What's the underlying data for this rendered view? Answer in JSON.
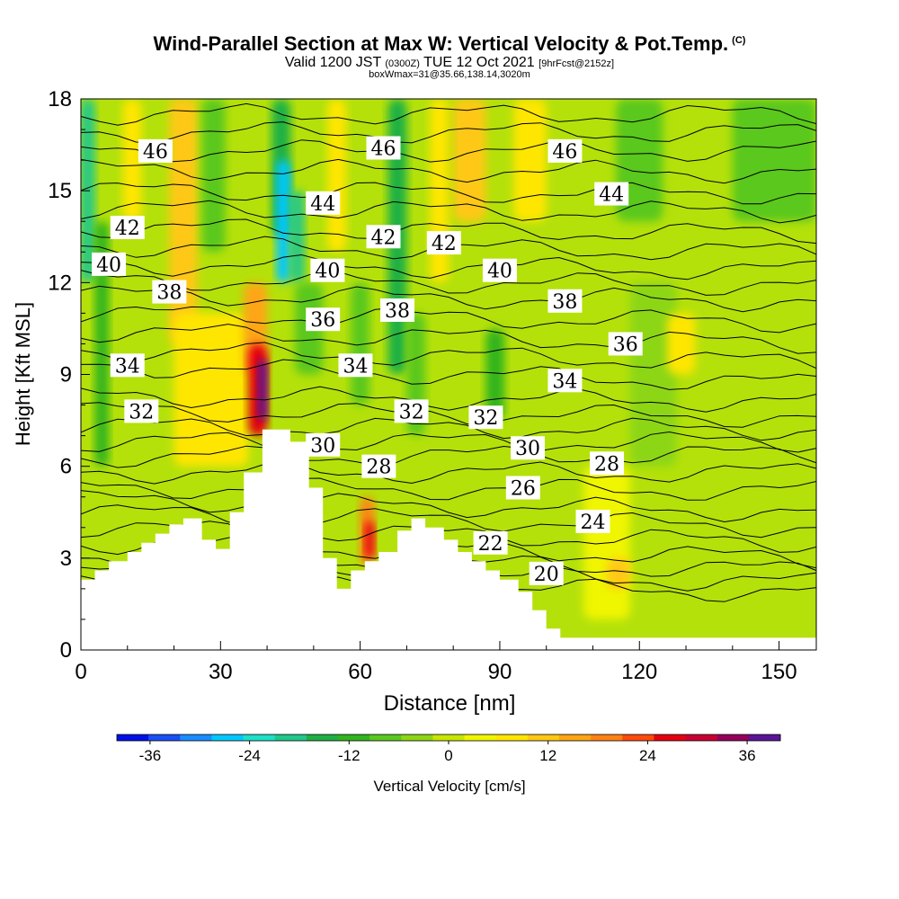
{
  "header": {
    "title": "Wind-Parallel Section at Max W: Vertical Velocity & Pot.Temp.",
    "copyright": "(C)",
    "subtitle_main": "Valid 1200 JST",
    "subtitle_utc": "(0300Z)",
    "subtitle_date": "TUE 12 Oct 2021",
    "subtitle_fcst": "[9hrFcst@2152z]",
    "boxline": "boxWmax=31@35.66,138.14,3020m"
  },
  "colorbar": {
    "label": "Vertical Velocity [cm/s]",
    "ticks": [
      "-36",
      "-24",
      "-12",
      "0",
      "12",
      "24",
      "36"
    ],
    "levels": [
      -40,
      -36,
      -32,
      -28,
      -24,
      -20,
      -16,
      -12,
      -8,
      -4,
      0,
      4,
      8,
      12,
      16,
      20,
      24,
      28,
      32,
      36,
      40
    ],
    "colors": [
      "#0010e8",
      "#1a4ff5",
      "#1a8cff",
      "#00c8ff",
      "#1ee0c8",
      "#20c88a",
      "#1fb044",
      "#32b41e",
      "#5ac81e",
      "#8cd614",
      "#c8e600",
      "#f0f500",
      "#ffe600",
      "#ffc814",
      "#ffa514",
      "#ff8214",
      "#ff4b0a",
      "#e6000f",
      "#c80032",
      "#96005a",
      "#5a1496"
    ]
  },
  "chart_data": {
    "type": "contour-section",
    "xlabel": "Distance [nm]",
    "ylabel": "Height [Kft MSL]",
    "xlim": [
      0,
      158
    ],
    "ylim": [
      0,
      18
    ],
    "xticks": [
      "0",
      "30",
      "60",
      "90",
      "120",
      "150"
    ],
    "yticks": [
      "0",
      "3",
      "6",
      "9",
      "12",
      "15",
      "18"
    ],
    "terrain": [
      [
        0,
        2.3
      ],
      [
        3,
        2.3
      ],
      [
        3,
        2.6
      ],
      [
        6,
        2.6
      ],
      [
        6,
        2.9
      ],
      [
        10,
        2.9
      ],
      [
        10,
        3.2
      ],
      [
        13,
        3.2
      ],
      [
        13,
        3.5
      ],
      [
        16,
        3.5
      ],
      [
        16,
        3.8
      ],
      [
        19,
        3.8
      ],
      [
        19,
        4.1
      ],
      [
        22,
        4.1
      ],
      [
        22,
        4.3
      ],
      [
        26,
        4.3
      ],
      [
        26,
        3.6
      ],
      [
        29,
        3.6
      ],
      [
        29,
        3.3
      ],
      [
        32,
        3.3
      ],
      [
        32,
        4.5
      ],
      [
        35,
        4.5
      ],
      [
        35,
        5.8
      ],
      [
        39,
        5.8
      ],
      [
        39,
        7.2
      ],
      [
        42,
        7.2
      ],
      [
        42,
        7.2
      ],
      [
        45,
        7.2
      ],
      [
        45,
        6.8
      ],
      [
        49,
        6.8
      ],
      [
        49,
        5.3
      ],
      [
        52,
        5.3
      ],
      [
        52,
        3.0
      ],
      [
        55,
        3.0
      ],
      [
        55,
        2.0
      ],
      [
        58,
        2.0
      ],
      [
        58,
        2.6
      ],
      [
        61,
        2.6
      ],
      [
        61,
        2.9
      ],
      [
        64,
        2.9
      ],
      [
        64,
        3.2
      ],
      [
        68,
        3.2
      ],
      [
        68,
        3.9
      ],
      [
        71,
        3.9
      ],
      [
        71,
        4.3
      ],
      [
        74,
        4.3
      ],
      [
        74,
        4.0
      ],
      [
        78,
        4.0
      ],
      [
        78,
        3.6
      ],
      [
        81,
        3.6
      ],
      [
        81,
        3.2
      ],
      [
        84,
        3.2
      ],
      [
        84,
        2.9
      ],
      [
        87,
        2.9
      ],
      [
        87,
        2.6
      ],
      [
        90,
        2.6
      ],
      [
        90,
        2.3
      ],
      [
        94,
        2.3
      ],
      [
        94,
        1.9
      ],
      [
        97,
        1.9
      ],
      [
        97,
        1.3
      ],
      [
        100,
        1.3
      ],
      [
        100,
        0.7
      ],
      [
        103,
        0.7
      ],
      [
        103,
        0.4
      ],
      [
        158,
        0.4
      ]
    ],
    "vv_cells": [
      {
        "x": [
          0,
          3
        ],
        "y": [
          12,
          18
        ],
        "v": -20
      },
      {
        "x": [
          3,
          6
        ],
        "y": [
          6,
          14
        ],
        "v": -10
      },
      {
        "x": [
          9,
          13
        ],
        "y": [
          14,
          18
        ],
        "v": 8
      },
      {
        "x": [
          19,
          25
        ],
        "y": [
          10,
          18
        ],
        "v": 12
      },
      {
        "x": [
          20,
          36
        ],
        "y": [
          6,
          11
        ],
        "v": 8
      },
      {
        "x": [
          26,
          31
        ],
        "y": [
          13,
          18
        ],
        "v": -6
      },
      {
        "x": [
          35,
          40
        ],
        "y": [
          9,
          12
        ],
        "v": 16
      },
      {
        "x": [
          36,
          40
        ],
        "y": [
          7,
          10
        ],
        "v": 28
      },
      {
        "x": [
          38,
          40
        ],
        "y": [
          7.5,
          9.5
        ],
        "v": 40
      },
      {
        "x": [
          41,
          45
        ],
        "y": [
          13.5,
          18
        ],
        "v": -16
      },
      {
        "x": [
          42,
          45
        ],
        "y": [
          12,
          16
        ],
        "v": -28
      },
      {
        "x": [
          45,
          48
        ],
        "y": [
          12,
          15
        ],
        "v": -20
      },
      {
        "x": [
          46,
          52
        ],
        "y": [
          9,
          12
        ],
        "v": -6
      },
      {
        "x": [
          53,
          57
        ],
        "y": [
          13,
          18
        ],
        "v": 10
      },
      {
        "x": [
          58,
          62
        ],
        "y": [
          8,
          12
        ],
        "v": -8
      },
      {
        "x": [
          60,
          63
        ],
        "y": [
          2.8,
          5
        ],
        "v": 20
      },
      {
        "x": [
          61,
          63
        ],
        "y": [
          3,
          4.2
        ],
        "v": 28
      },
      {
        "x": [
          66,
          70
        ],
        "y": [
          9,
          18
        ],
        "v": -16
      },
      {
        "x": [
          70,
          74
        ],
        "y": [
          7,
          11
        ],
        "v": -6
      },
      {
        "x": [
          75,
          79
        ],
        "y": [
          12,
          18
        ],
        "v": 8
      },
      {
        "x": [
          80,
          87
        ],
        "y": [
          14,
          18
        ],
        "v": 12
      },
      {
        "x": [
          87,
          91
        ],
        "y": [
          7.5,
          10.5
        ],
        "v": -10
      },
      {
        "x": [
          93,
          100
        ],
        "y": [
          14,
          18
        ],
        "v": 8
      },
      {
        "x": [
          108,
          118
        ],
        "y": [
          1,
          6
        ],
        "v": 6
      },
      {
        "x": [
          113,
          118
        ],
        "y": [
          2,
          3
        ],
        "v": 14
      },
      {
        "x": [
          115,
          125
        ],
        "y": [
          14,
          18
        ],
        "v": -6
      },
      {
        "x": [
          118,
          128
        ],
        "y": [
          6,
          12
        ],
        "v": -4
      },
      {
        "x": [
          126,
          132
        ],
        "y": [
          9,
          11
        ],
        "v": 8
      },
      {
        "x": [
          140,
          158
        ],
        "y": [
          14,
          18
        ],
        "v": -6
      }
    ],
    "theta_labels": [
      {
        "text": "46",
        "x": 16,
        "y": 16.3
      },
      {
        "text": "46",
        "x": 65,
        "y": 16.4
      },
      {
        "text": "46",
        "x": 104,
        "y": 16.3
      },
      {
        "text": "44",
        "x": 52,
        "y": 14.6
      },
      {
        "text": "44",
        "x": 114,
        "y": 14.9
      },
      {
        "text": "42",
        "x": 10,
        "y": 13.8
      },
      {
        "text": "42",
        "x": 65,
        "y": 13.5
      },
      {
        "text": "42",
        "x": 78,
        "y": 13.3
      },
      {
        "text": "40",
        "x": 6,
        "y": 12.6
      },
      {
        "text": "40",
        "x": 53,
        "y": 12.4
      },
      {
        "text": "40",
        "x": 90,
        "y": 12.4
      },
      {
        "text": "38",
        "x": 19,
        "y": 11.7
      },
      {
        "text": "38",
        "x": 68,
        "y": 11.1
      },
      {
        "text": "38",
        "x": 104,
        "y": 11.4
      },
      {
        "text": "36",
        "x": 52,
        "y": 10.8
      },
      {
        "text": "36",
        "x": 117,
        "y": 10.0
      },
      {
        "text": "34",
        "x": 10,
        "y": 9.3
      },
      {
        "text": "34",
        "x": 59,
        "y": 9.3
      },
      {
        "text": "34",
        "x": 104,
        "y": 8.8
      },
      {
        "text": "32",
        "x": 13,
        "y": 7.8
      },
      {
        "text": "32",
        "x": 71,
        "y": 7.8
      },
      {
        "text": "32",
        "x": 87,
        "y": 7.6
      },
      {
        "text": "30",
        "x": 52,
        "y": 6.7
      },
      {
        "text": "30",
        "x": 96,
        "y": 6.6
      },
      {
        "text": "28",
        "x": 64,
        "y": 6.0
      },
      {
        "text": "28",
        "x": 113,
        "y": 6.1
      },
      {
        "text": "26",
        "x": 95,
        "y": 5.3
      },
      {
        "text": "24",
        "x": 110,
        "y": 4.2
      },
      {
        "text": "22",
        "x": 88,
        "y": 3.5
      },
      {
        "text": "20",
        "x": 100,
        "y": 2.5
      }
    ],
    "theta_isolines": [
      {
        "v": 20,
        "y0": 2.1,
        "y1": 1.9
      },
      {
        "v": 21,
        "y0": 2.6,
        "y1": 2.2
      },
      {
        "v": 22,
        "y0": 3.0,
        "y1": 2.6
      },
      {
        "v": 23,
        "y0": 3.5,
        "y1": 3.0
      },
      {
        "v": 24,
        "y0": 4.0,
        "y1": 3.5
      },
      {
        "v": 25,
        "y0": 4.5,
        "y1": 4.0
      },
      {
        "v": 26,
        "y0": 4.9,
        "y1": 4.5
      },
      {
        "v": 27,
        "y0": 5.3,
        "y1": 5.2
      },
      {
        "v": 28,
        "y0": 5.8,
        "y1": 5.8
      },
      {
        "v": 29,
        "y0": 6.3,
        "y1": 6.4
      },
      {
        "v": 30,
        "y0": 6.8,
        "y1": 6.8
      },
      {
        "v": 31,
        "y0": 7.3,
        "y1": 7.2
      },
      {
        "v": 32,
        "y0": 7.8,
        "y1": 7.6
      },
      {
        "v": 33,
        "y0": 8.3,
        "y1": 8.1
      },
      {
        "v": 34,
        "y0": 9.3,
        "y1": 8.7
      },
      {
        "v": 35,
        "y0": 9.8,
        "y1": 9.4
      },
      {
        "v": 36,
        "y0": 10.4,
        "y1": 10.0
      },
      {
        "v": 37,
        "y0": 11.0,
        "y1": 10.7
      },
      {
        "v": 38,
        "y0": 11.6,
        "y1": 11.4
      },
      {
        "v": 39,
        "y0": 12.1,
        "y1": 11.9
      },
      {
        "v": 40,
        "y0": 12.6,
        "y1": 12.4
      },
      {
        "v": 41,
        "y0": 13.2,
        "y1": 13.0
      },
      {
        "v": 42,
        "y0": 13.8,
        "y1": 13.6
      },
      {
        "v": 43,
        "y0": 14.4,
        "y1": 14.3
      },
      {
        "v": 44,
        "y0": 15.0,
        "y1": 14.9
      },
      {
        "v": 45,
        "y0": 15.7,
        "y1": 15.6
      },
      {
        "v": 46,
        "y0": 16.3,
        "y1": 16.3
      },
      {
        "v": 47,
        "y0": 16.9,
        "y1": 16.9
      },
      {
        "v": 48,
        "y0": 17.5,
        "y1": 17.5
      }
    ]
  }
}
